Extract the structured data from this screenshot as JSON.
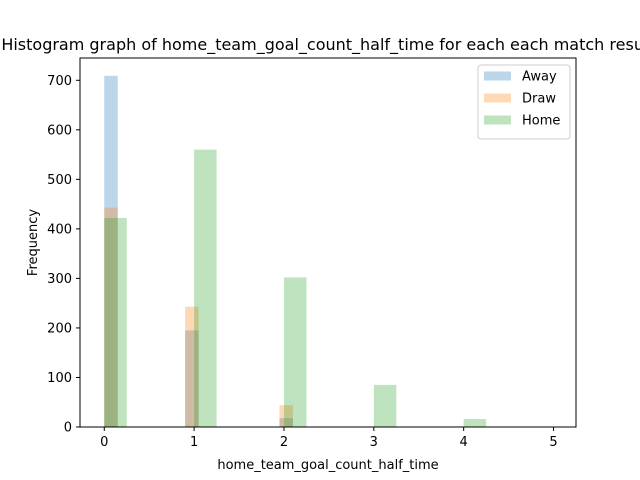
{
  "chart_data": {
    "type": "bar",
    "title": "Histogram graph of home_team_goal_count_half_time for each each match result",
    "xlabel": "home_team_goal_count_half_time",
    "ylabel": "Frequency",
    "xlim": [
      -0.27,
      5.25
    ],
    "ylim": [
      0,
      745
    ],
    "xticks": [
      0,
      1,
      2,
      3,
      4,
      5
    ],
    "yticks": [
      0,
      100,
      200,
      300,
      400,
      500,
      600,
      700
    ],
    "grid": false,
    "legend_position": "top-right",
    "series": [
      {
        "name": "Away",
        "color": "#1f77b4",
        "opacity": 0.3,
        "bins": [
          {
            "start": 0.0,
            "end": 0.15,
            "value": 709
          },
          {
            "start": 0.9,
            "end": 1.05,
            "value": 195
          },
          {
            "start": 1.95,
            "end": 2.1,
            "value": 18
          }
        ]
      },
      {
        "name": "Draw",
        "color": "#ff7f0e",
        "opacity": 0.3,
        "bins": [
          {
            "start": 0.0,
            "end": 0.15,
            "value": 443
          },
          {
            "start": 0.9,
            "end": 1.05,
            "value": 243
          },
          {
            "start": 1.95,
            "end": 2.1,
            "value": 44
          },
          {
            "start": 2.85,
            "end": 3.0,
            "value": 1
          },
          {
            "start": 4.75,
            "end": 5.0,
            "value": 1
          }
        ]
      },
      {
        "name": "Home",
        "color": "#2ca02c",
        "opacity": 0.3,
        "bins": [
          {
            "start": 0.0,
            "end": 0.25,
            "value": 422
          },
          {
            "start": 1.0,
            "end": 1.25,
            "value": 560
          },
          {
            "start": 2.0,
            "end": 2.25,
            "value": 302
          },
          {
            "start": 3.0,
            "end": 3.25,
            "value": 85
          },
          {
            "start": 4.0,
            "end": 4.25,
            "value": 16
          }
        ]
      }
    ]
  }
}
